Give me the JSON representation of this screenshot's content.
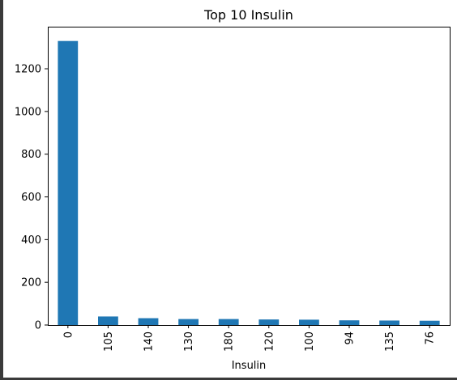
{
  "chart_data": {
    "type": "bar",
    "title": "Top 10 Insulin",
    "xlabel": "Insulin",
    "ylabel": "",
    "categories": [
      "0",
      "105",
      "140",
      "130",
      "180",
      "120",
      "100",
      "94",
      "135",
      "76"
    ],
    "values": [
      1330,
      40,
      32,
      28,
      28,
      26,
      25,
      22,
      21,
      20
    ],
    "ylim": [
      0,
      1397
    ],
    "yticks": [
      0,
      200,
      400,
      600,
      800,
      1000,
      1200
    ],
    "grid": false,
    "legend": "none",
    "bar_color": "#1f77b4"
  }
}
